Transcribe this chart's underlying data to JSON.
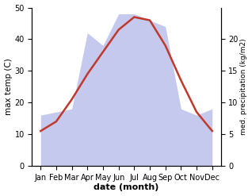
{
  "months": [
    "Jan",
    "Feb",
    "Mar",
    "Apr",
    "May",
    "Jun",
    "Jul",
    "Aug",
    "Sep",
    "Oct",
    "Nov",
    "Dec"
  ],
  "temp_C": [
    11,
    14,
    21,
    29,
    36,
    43,
    47,
    46,
    38,
    27,
    17,
    11
  ],
  "precip_mm": [
    8,
    8.5,
    9,
    21,
    19,
    24,
    24,
    23,
    22,
    9,
    8,
    9
  ],
  "temp_color": "#c0392b",
  "precip_color": "#b0b8e8",
  "precip_alpha": 0.75,
  "ylabel_left": "max temp (C)",
  "ylabel_right": "med. precipitation (kg/m2)",
  "xlabel": "date (month)",
  "ylim_left": [
    0,
    50
  ],
  "ylim_right": [
    0,
    25
  ],
  "yticks_left": [
    0,
    10,
    20,
    30,
    40,
    50
  ],
  "yticks_right": [
    0,
    5,
    10,
    15,
    20
  ],
  "bg_color": "#ffffff",
  "line_width": 1.8
}
